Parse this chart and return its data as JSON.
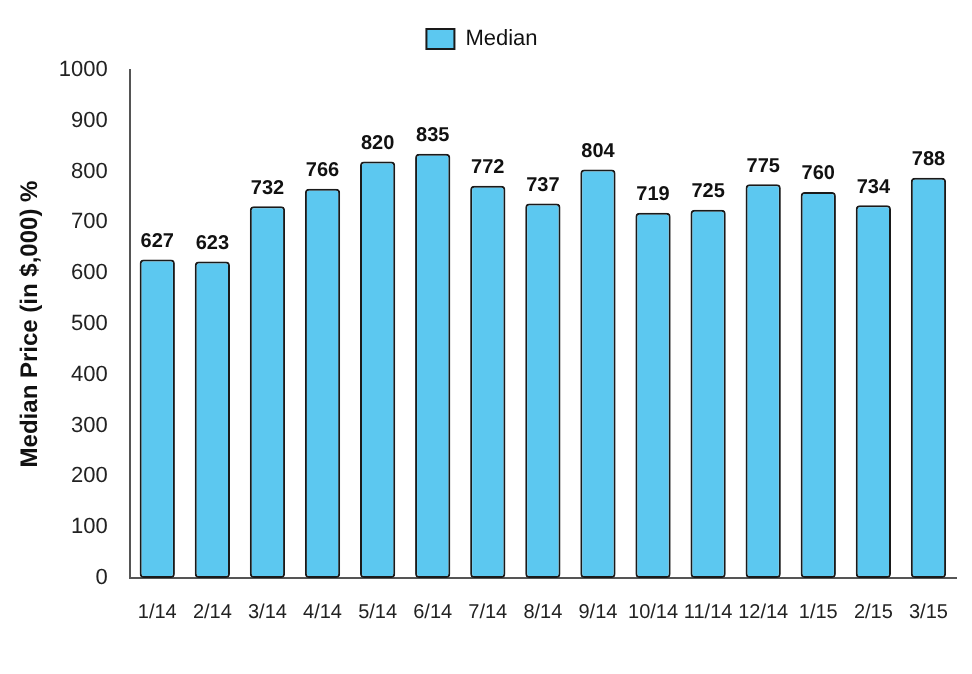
{
  "chart_data": {
    "type": "bar",
    "ylabel": "Median Price (in $,000) %",
    "categories": [
      "1/14",
      "2/14",
      "3/14",
      "4/14",
      "5/14",
      "6/14",
      "7/14",
      "8/14",
      "9/14",
      "10/14",
      "11/14",
      "12/14",
      "1/15",
      "2/15",
      "3/15"
    ],
    "series": [
      {
        "name": "Median",
        "color": "#5cc8f0",
        "values": [
          627,
          623,
          732,
          766,
          820,
          835,
          772,
          737,
          804,
          719,
          725,
          775,
          760,
          734,
          788
        ]
      }
    ],
    "ylim": [
      0,
      1000
    ],
    "yticks": [
      0,
      100,
      200,
      300,
      400,
      500,
      600,
      700,
      800,
      900,
      1000
    ],
    "grid": false,
    "legend": "top",
    "data_labels": true
  }
}
